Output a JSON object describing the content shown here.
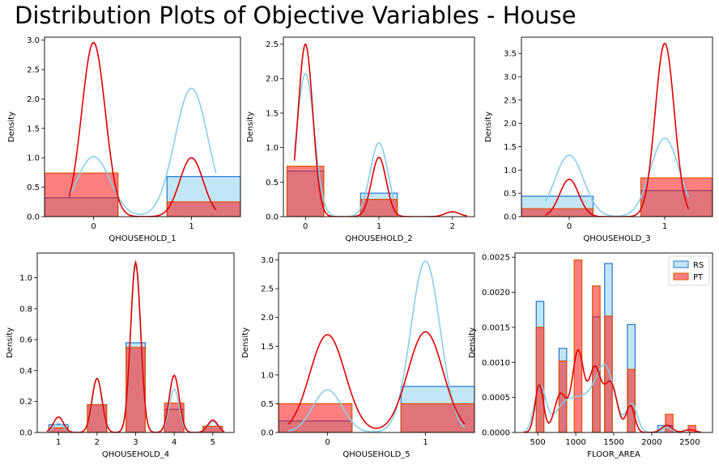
{
  "title": "Distribution Plots of Objective Variables - House",
  "colors": {
    "rs_fill": "#87ceeb",
    "rs_edge": "#1f77d4",
    "rs_kde": "#87ceeb",
    "pt_fill": "#ff0000",
    "pt_edge": "#e05000",
    "pt_kde": "#e00000"
  },
  "chart_data": [
    {
      "type": "histogram",
      "xlabel": "QHOUSEHOLD_1",
      "ylabel": "Density",
      "xlim": [
        -0.5,
        1.5
      ],
      "ylim": [
        0,
        3.05
      ],
      "xticks": [
        {
          "v": 0,
          "label": "0"
        },
        {
          "v": 1,
          "label": "1"
        }
      ],
      "yticks": [
        {
          "v": 0,
          "label": "0.0"
        },
        {
          "v": 0.5,
          "label": "0.5"
        },
        {
          "v": 1,
          "label": "1.0"
        },
        {
          "v": 1.5,
          "label": "1.5"
        },
        {
          "v": 2,
          "label": "2.0"
        },
        {
          "v": 2.5,
          "label": "2.5"
        },
        {
          "v": 3,
          "label": "3.0"
        }
      ],
      "series": [
        {
          "name": "RS",
          "bars": [
            {
              "x0": -0.5,
              "x1": 0.25,
              "h": 0.32
            },
            {
              "x0": 0.75,
              "x1": 1.5,
              "h": 0.68
            }
          ],
          "kde": {
            "range": [
              -0.25,
              1.25
            ],
            "peaks": [
              [
                0,
                1.02,
                0.17
              ],
              [
                1,
                2.18,
                0.17
              ]
            ]
          }
        },
        {
          "name": "PT",
          "bars": [
            {
              "x0": -0.5,
              "x1": 0.25,
              "h": 0.74
            },
            {
              "x0": 0.75,
              "x1": 1.5,
              "h": 0.25
            }
          ],
          "kde": {
            "range": [
              -0.25,
              1.25
            ],
            "peaks": [
              [
                0,
                2.96,
                0.12
              ],
              [
                1,
                1.0,
                0.12
              ]
            ]
          }
        }
      ]
    },
    {
      "type": "histogram",
      "xlabel": "QHOUSEHOLD_2",
      "ylabel": "Density",
      "xlim": [
        -0.3,
        2.3
      ],
      "ylim": [
        0,
        2.6
      ],
      "xticks": [
        {
          "v": 0,
          "label": "0"
        },
        {
          "v": 1,
          "label": "1"
        },
        {
          "v": 2,
          "label": "2"
        }
      ],
      "yticks": [
        {
          "v": 0,
          "label": "0.0"
        },
        {
          "v": 0.5,
          "label": "0.5"
        },
        {
          "v": 1,
          "label": "1.0"
        },
        {
          "v": 1.5,
          "label": "1.5"
        },
        {
          "v": 2,
          "label": "2.0"
        },
        {
          "v": 2.5,
          "label": "2.5"
        }
      ],
      "series": [
        {
          "name": "RS",
          "bars": [
            {
              "x0": -0.25,
              "x1": 0.25,
              "h": 0.66
            },
            {
              "x0": 0.75,
              "x1": 1.25,
              "h": 0.34
            }
          ],
          "kde": {
            "range": [
              -0.15,
              1.2
            ],
            "peaks": [
              [
                0,
                2.07,
                0.12
              ],
              [
                1,
                1.07,
                0.12
              ]
            ]
          }
        },
        {
          "name": "PT",
          "bars": [
            {
              "x0": -0.25,
              "x1": 0.25,
              "h": 0.73
            },
            {
              "x0": 0.75,
              "x1": 1.25,
              "h": 0.25
            }
          ],
          "kde": {
            "range": [
              -0.15,
              2.2
            ],
            "peaks": [
              [
                0,
                2.5,
                0.1
              ],
              [
                1,
                0.86,
                0.1
              ],
              [
                2,
                0.07,
                0.1
              ]
            ]
          }
        }
      ]
    },
    {
      "type": "histogram",
      "xlabel": "QHOUSEHOLD_3",
      "ylabel": "Density",
      "xlim": [
        -0.5,
        1.5
      ],
      "ylim": [
        0,
        3.85
      ],
      "xticks": [
        {
          "v": 0,
          "label": "0"
        },
        {
          "v": 1,
          "label": "1"
        }
      ],
      "yticks": [
        {
          "v": 0,
          "label": "0.0"
        },
        {
          "v": 0.5,
          "label": "0.5"
        },
        {
          "v": 1,
          "label": "1.0"
        },
        {
          "v": 1.5,
          "label": "1.5"
        },
        {
          "v": 2,
          "label": "2.0"
        },
        {
          "v": 2.5,
          "label": "2.5"
        },
        {
          "v": 3,
          "label": "3.0"
        },
        {
          "v": 3.5,
          "label": "3.5"
        }
      ],
      "series": [
        {
          "name": "RS",
          "bars": [
            {
              "x0": -0.5,
              "x1": 0.25,
              "h": 0.44
            },
            {
              "x0": 0.75,
              "x1": 1.5,
              "h": 0.56
            }
          ],
          "kde": {
            "range": [
              -0.25,
              1.25
            ],
            "peaks": [
              [
                0,
                1.32,
                0.15
              ],
              [
                1,
                1.68,
                0.15
              ]
            ]
          }
        },
        {
          "name": "PT",
          "bars": [
            {
              "x0": -0.5,
              "x1": 0.25,
              "h": 0.17
            },
            {
              "x0": 0.75,
              "x1": 1.5,
              "h": 0.83
            }
          ],
          "kde": {
            "range": [
              -0.25,
              1.25
            ],
            "peaks": [
              [
                0,
                0.8,
                0.1
              ],
              [
                1,
                3.72,
                0.1
              ]
            ]
          }
        }
      ]
    },
    {
      "type": "histogram",
      "xlabel": "QHOUSEHOLD_4",
      "ylabel": "Density",
      "xlim": [
        0.45,
        5.55
      ],
      "ylim": [
        0,
        1.16
      ],
      "xticks": [
        {
          "v": 1,
          "label": "1"
        },
        {
          "v": 2,
          "label": "2"
        },
        {
          "v": 3,
          "label": "3"
        },
        {
          "v": 4,
          "label": "4"
        },
        {
          "v": 5,
          "label": "5"
        }
      ],
      "yticks": [
        {
          "v": 0,
          "label": "0.0"
        },
        {
          "v": 0.2,
          "label": "0.2"
        },
        {
          "v": 0.4,
          "label": "0.4"
        },
        {
          "v": 0.6,
          "label": "0.6"
        },
        {
          "v": 0.8,
          "label": "0.8"
        },
        {
          "v": 1,
          "label": "1.0"
        }
      ],
      "series": [
        {
          "name": "RS",
          "bars": [
            {
              "x0": 0.75,
              "x1": 1.25,
              "h": 0.05
            },
            {
              "x0": 1.75,
              "x1": 2.25,
              "h": 0.18
            },
            {
              "x0": 2.75,
              "x1": 3.25,
              "h": 0.58
            },
            {
              "x0": 3.75,
              "x1": 4.25,
              "h": 0.15
            },
            {
              "x0": 4.75,
              "x1": 5.25,
              "h": 0.04
            }
          ],
          "kde": {
            "range": [
              0.7,
              5.3
            ],
            "peaks": [
              [
                1,
                0.06,
                0.13
              ],
              [
                2,
                0.35,
                0.13
              ],
              [
                3,
                1.08,
                0.13
              ],
              [
                4,
                0.28,
                0.13
              ],
              [
                5,
                0.07,
                0.13
              ]
            ]
          }
        },
        {
          "name": "PT",
          "bars": [
            {
              "x0": 0.75,
              "x1": 1.25,
              "h": 0.03
            },
            {
              "x0": 1.75,
              "x1": 2.25,
              "h": 0.18
            },
            {
              "x0": 2.75,
              "x1": 3.25,
              "h": 0.55
            },
            {
              "x0": 3.75,
              "x1": 4.25,
              "h": 0.19
            },
            {
              "x0": 4.75,
              "x1": 5.25,
              "h": 0.04
            }
          ],
          "kde": {
            "range": [
              0.7,
              5.3
            ],
            "peaks": [
              [
                1,
                0.1,
                0.13
              ],
              [
                2,
                0.35,
                0.13
              ],
              [
                3,
                1.1,
                0.13
              ],
              [
                4,
                0.37,
                0.13
              ],
              [
                5,
                0.08,
                0.13
              ]
            ]
          }
        }
      ]
    },
    {
      "type": "histogram",
      "xlabel": "QHOUSEHOLD_5",
      "ylabel": "Density",
      "xlim": [
        -0.5,
        1.5
      ],
      "ylim": [
        0,
        3.12
      ],
      "xticks": [
        {
          "v": 0,
          "label": "0"
        },
        {
          "v": 1,
          "label": "1"
        }
      ],
      "yticks": [
        {
          "v": 0,
          "label": "0.0"
        },
        {
          "v": 0.5,
          "label": "0.5"
        },
        {
          "v": 1,
          "label": "1.0"
        },
        {
          "v": 1.5,
          "label": "1.5"
        },
        {
          "v": 2,
          "label": "2.0"
        },
        {
          "v": 2.5,
          "label": "2.5"
        },
        {
          "v": 3,
          "label": "3.0"
        }
      ],
      "series": [
        {
          "name": "RS",
          "bars": [
            {
              "x0": -0.5,
              "x1": 0.25,
              "h": 0.2
            },
            {
              "x0": 0.75,
              "x1": 1.5,
              "h": 0.8
            }
          ],
          "kde": {
            "range": [
              -0.4,
              1.4
            ],
            "peaks": [
              [
                0,
                0.74,
                0.15
              ],
              [
                1,
                2.98,
                0.15
              ]
            ]
          }
        },
        {
          "name": "PT",
          "bars": [
            {
              "x0": -0.5,
              "x1": 0.25,
              "h": 0.5
            },
            {
              "x0": 0.75,
              "x1": 1.5,
              "h": 0.5
            }
          ],
          "kde": {
            "range": [
              -0.4,
              1.4
            ],
            "peaks": [
              [
                0,
                1.7,
                0.18
              ],
              [
                1,
                1.75,
                0.18
              ]
            ]
          }
        }
      ]
    },
    {
      "type": "histogram",
      "xlabel": "FLOOR_AREA",
      "ylabel": "Density",
      "xlim": [
        200,
        2800
      ],
      "ylim": [
        0,
        0.00256
      ],
      "xticks": [
        {
          "v": 500,
          "label": "500"
        },
        {
          "v": 1000,
          "label": "1000"
        },
        {
          "v": 1500,
          "label": "1500"
        },
        {
          "v": 2000,
          "label": "2000"
        },
        {
          "v": 2500,
          "label": "2500"
        }
      ],
      "yticks": [
        {
          "v": 0,
          "label": "0.0000"
        },
        {
          "v": 0.0005,
          "label": "0.0005"
        },
        {
          "v": 0.001,
          "label": "0.0010"
        },
        {
          "v": 0.0015,
          "label": "0.0015"
        },
        {
          "v": 0.002,
          "label": "0.0020"
        },
        {
          "v": 0.0025,
          "label": "0.0025"
        }
      ],
      "legend": {
        "placement": "top-right",
        "entries": [
          "RS",
          "PT"
        ]
      },
      "series": [
        {
          "name": "RS",
          "bars": [
            {
              "x0": 480,
              "x1": 580,
              "h": 0.00187
            },
            {
              "x0": 780,
              "x1": 880,
              "h": 0.0012
            },
            {
              "x0": 1220,
              "x1": 1320,
              "h": 0.00165
            },
            {
              "x0": 1380,
              "x1": 1480,
              "h": 0.00241
            },
            {
              "x0": 1680,
              "x1": 1780,
              "h": 0.00154
            },
            {
              "x0": 2080,
              "x1": 2180,
              "h": 0.0001
            },
            {
              "x0": 2180,
              "x1": 2280,
              "h": 0.0001
            }
          ],
          "kde": {
            "range": [
              310,
              2500
            ],
            "peaks": [
              [
                530,
                0.00065,
                75
              ],
              [
                850,
                0.00035,
                140
              ],
              [
                1150,
                0.00045,
                170
              ],
              [
                1400,
                0.0008,
                120
              ],
              [
                1740,
                0.0004,
                70
              ],
              [
                2200,
                7e-05,
                60
              ]
            ]
          }
        },
        {
          "name": "PT",
          "bars": [
            {
              "x0": 480,
              "x1": 580,
              "h": 0.0015
            },
            {
              "x0": 780,
              "x1": 880,
              "h": 0.00102
            },
            {
              "x0": 980,
              "x1": 1080,
              "h": 0.00246
            },
            {
              "x0": 1220,
              "x1": 1320,
              "h": 0.00209
            },
            {
              "x0": 1380,
              "x1": 1480,
              "h": 0.00166
            },
            {
              "x0": 1680,
              "x1": 1780,
              "h": 0.0009
            },
            {
              "x0": 2180,
              "x1": 2280,
              "h": 0.00026
            },
            {
              "x0": 2480,
              "x1": 2580,
              "h": 0.0001
            }
          ],
          "kde": {
            "range": [
              310,
              2650
            ],
            "peaks": [
              [
                520,
                0.00068,
                55
              ],
              [
                800,
                0.00055,
                80
              ],
              [
                1030,
                0.00115,
                75
              ],
              [
                1250,
                0.0009,
                80
              ],
              [
                1460,
                0.0007,
                85
              ],
              [
                1720,
                0.00038,
                55
              ],
              [
                2200,
                0.0001,
                70
              ],
              [
                2500,
                4e-05,
                70
              ]
            ]
          }
        }
      ]
    }
  ]
}
